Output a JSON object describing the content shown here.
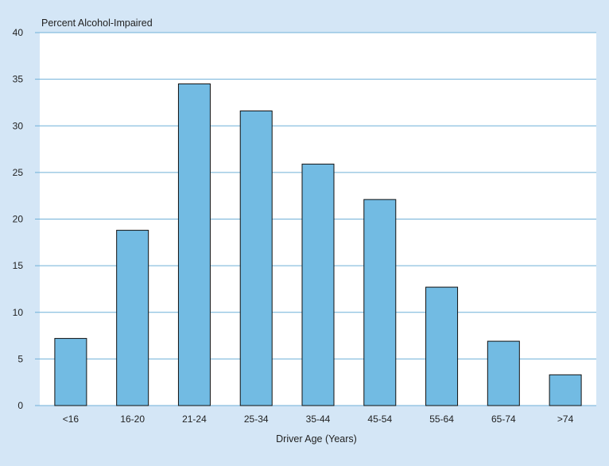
{
  "chart_data": {
    "type": "bar",
    "title": "",
    "ylabel": "Percent Alcohol-Impaired",
    "xlabel": "Driver Age (Years)",
    "categories": [
      "<16",
      "16-20",
      "21-24",
      "25-34",
      "35-44",
      "45-54",
      "55-64",
      "65-74",
      ">74"
    ],
    "series": [
      {
        "values": [
          7.2,
          18.8,
          34.5,
          31.6,
          25.9,
          22.1,
          12.7,
          6.9,
          3.3
        ]
      }
    ],
    "ylim": [
      0,
      40
    ],
    "yticks": [
      "0",
      "5",
      "10",
      "15",
      "20",
      "25",
      "30",
      "35",
      "40"
    ],
    "grid": true,
    "legend": "none",
    "colors": {
      "background": "#d4e6f6",
      "plot_area": "#ffffff",
      "bar_fill": "#72bbe3",
      "bar_stroke": "#111111",
      "gridline": "#6fb0d8"
    }
  }
}
